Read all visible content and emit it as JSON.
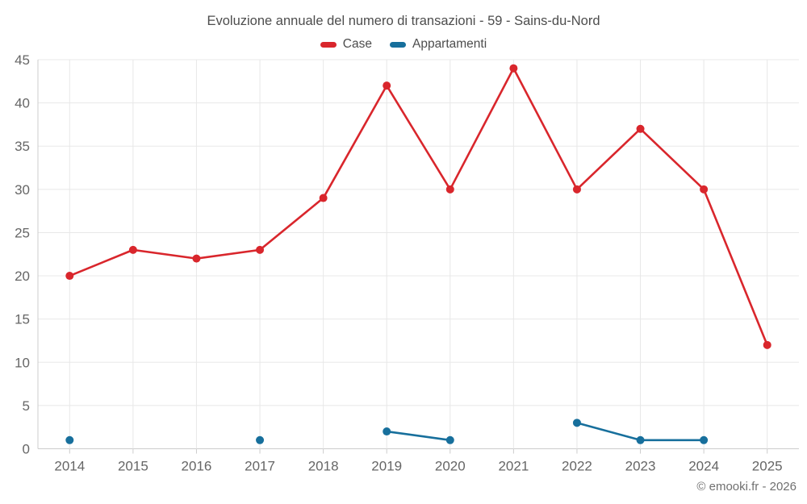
{
  "chart_data": {
    "type": "line",
    "title": "Evoluzione annuale del numero di transazioni - 59 - Sains-du-Nord",
    "categories": [
      "2014",
      "2015",
      "2016",
      "2017",
      "2018",
      "2019",
      "2020",
      "2021",
      "2022",
      "2023",
      "2024",
      "2025"
    ],
    "series": [
      {
        "name": "Case",
        "color": "#d9262c",
        "values": [
          20,
          23,
          22,
          23,
          29,
          42,
          30,
          44,
          30,
          37,
          30,
          12
        ]
      },
      {
        "name": "Appartamenti",
        "color": "#176f9c",
        "values": [
          1,
          null,
          null,
          1,
          null,
          2,
          1,
          null,
          3,
          1,
          1,
          null
        ]
      }
    ],
    "ylim": [
      0,
      45
    ],
    "yticks": [
      0,
      5,
      10,
      15,
      20,
      25,
      30,
      35,
      40,
      45
    ],
    "xlabel": "",
    "ylabel": "",
    "grid": true,
    "legend_position": "top"
  },
  "attribution": "© emooki.fr - 2026",
  "styles": {
    "background": "#ffffff",
    "grid_color": "#e8e8e8",
    "axis_color": "#cccccc",
    "tick_label_color": "#666666",
    "title_color": "#4d4d4d",
    "attribution_color": "#707070"
  }
}
